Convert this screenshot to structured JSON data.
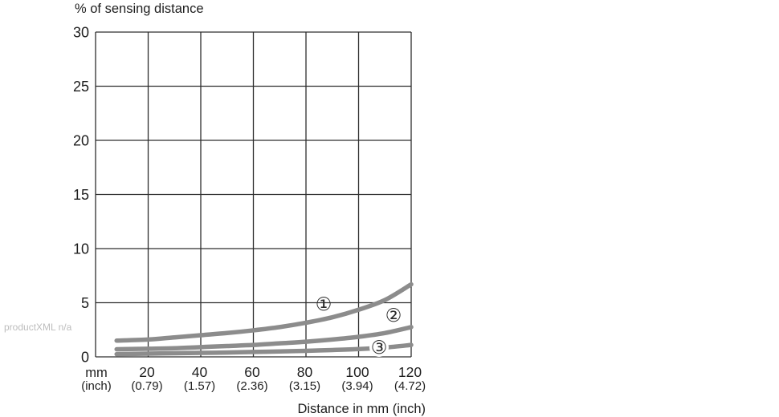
{
  "watermark": "productXML n/a",
  "colors": {
    "background": "#ffffff",
    "grid": "#2e2e2e",
    "curve": "#8c8c8c",
    "text": "#1e1e1e",
    "watermark": "#bdbdbd"
  },
  "chart_data": {
    "type": "line",
    "ylabel": "% of sensing distance",
    "xlabel": "Distance in mm (inch)",
    "x_unit_label": "mm",
    "x_unit_sublabel": "(inch)",
    "xlim": [
      0,
      120
    ],
    "ylim": [
      0,
      30
    ],
    "grid": true,
    "y_ticks": [
      0,
      5,
      10,
      15,
      20,
      25,
      30
    ],
    "x_ticks": [
      20,
      40,
      60,
      80,
      100,
      120
    ],
    "x_tick_sublabels": [
      "(0.79)",
      "(1.57)",
      "(2.36)",
      "(3.15)",
      "(3.94)",
      "(4.72)"
    ],
    "x": [
      8,
      20,
      30,
      40,
      50,
      60,
      70,
      80,
      90,
      100,
      110,
      120
    ],
    "series": [
      {
        "name": "①",
        "values": [
          1.5,
          1.6,
          1.8,
          2.0,
          2.2,
          2.45,
          2.75,
          3.15,
          3.65,
          4.35,
          5.25,
          6.7
        ]
      },
      {
        "name": "②",
        "values": [
          0.7,
          0.75,
          0.8,
          0.9,
          1.0,
          1.1,
          1.25,
          1.4,
          1.6,
          1.85,
          2.2,
          2.75
        ]
      },
      {
        "name": "③",
        "values": [
          0.25,
          0.3,
          0.33,
          0.37,
          0.4,
          0.45,
          0.5,
          0.56,
          0.63,
          0.72,
          0.86,
          1.1
        ]
      }
    ]
  }
}
